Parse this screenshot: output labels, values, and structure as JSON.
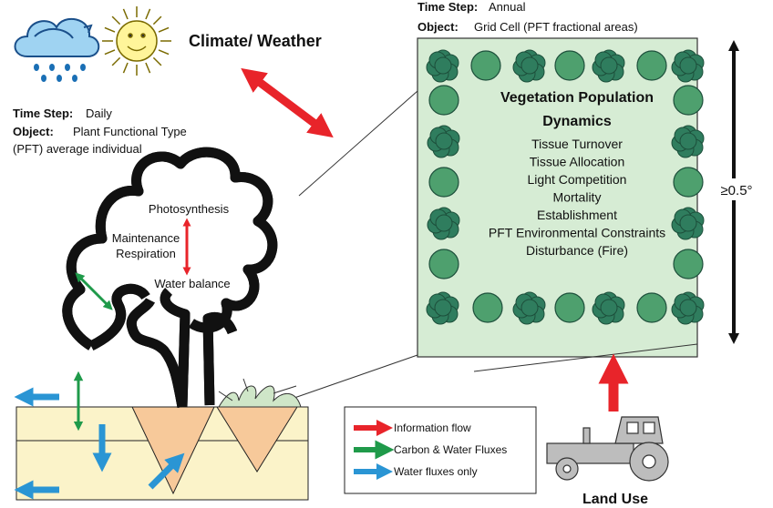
{
  "climate": {
    "label": "Climate/ Weather"
  },
  "grid_cell": {
    "time_step_label": "Time Step:",
    "time_step": "Annual",
    "object_label": "Object:",
    "object": "Grid Cell (PFT fractional areas)",
    "title": [
      "Vegetation Population",
      "Dynamics"
    ],
    "processes": [
      "Tissue Turnover",
      "Tissue Allocation",
      "Light Competition",
      "Mortality",
      "Establishment",
      "PFT Environmental Constraints",
      "Disturbance (Fire)"
    ],
    "scale": "≥0.5°"
  },
  "individual": {
    "time_step_label": "Time Step:",
    "time_step": "Daily",
    "object_label": "Object:",
    "object": [
      "Plant Functional Type",
      "(PFT) average individual"
    ],
    "processes": [
      "Photosynthesis",
      "Maintenance",
      "Respiration",
      "Water balance"
    ]
  },
  "legend": [
    "Information flow",
    "Carbon & Water Fluxes",
    "Water fluxes only"
  ],
  "land_use": "Land Use"
}
